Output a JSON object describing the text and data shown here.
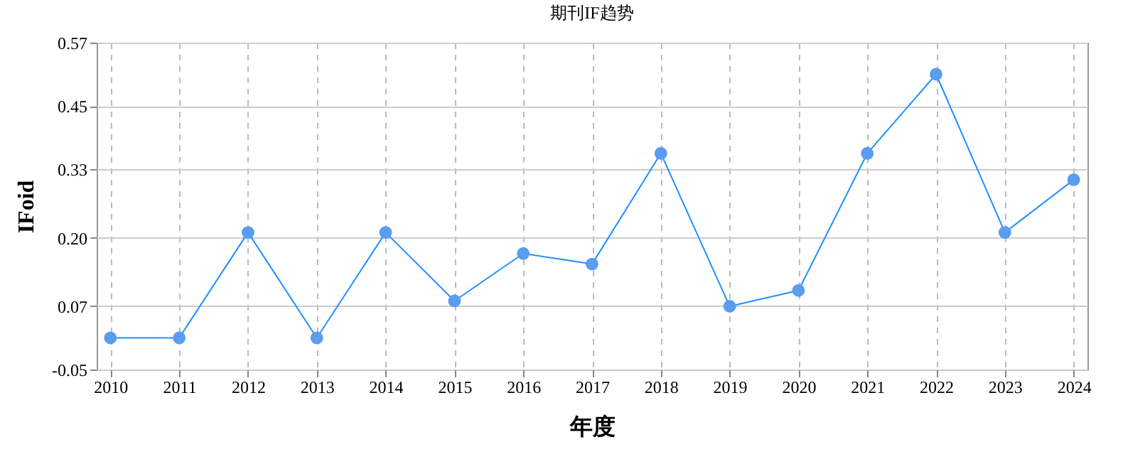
{
  "chart_data": {
    "type": "line",
    "title": "期刊IF趋势",
    "xlabel": "年度",
    "ylabel": "IFoid",
    "categories": [
      "2010",
      "2011",
      "2012",
      "2013",
      "2014",
      "2015",
      "2016",
      "2017",
      "2018",
      "2019",
      "2020",
      "2021",
      "2022",
      "2023",
      "2024"
    ],
    "series": [
      {
        "color": "#1e90ff",
        "values": [
          0.01,
          0.01,
          0.21,
          0.01,
          0.21,
          0.08,
          0.17,
          0.15,
          0.36,
          0.07,
          0.1,
          0.36,
          0.51,
          0.21,
          0.31
        ]
      }
    ],
    "ylim": [
      -0.05,
      0.57
    ],
    "yticks": [
      -0.05,
      0.07,
      {
        "value": 0.2,
        "label": "0.20"
      },
      0.33,
      0.45,
      0.57
    ],
    "grid": true,
    "marker": "circle",
    "line_style": "solid"
  }
}
